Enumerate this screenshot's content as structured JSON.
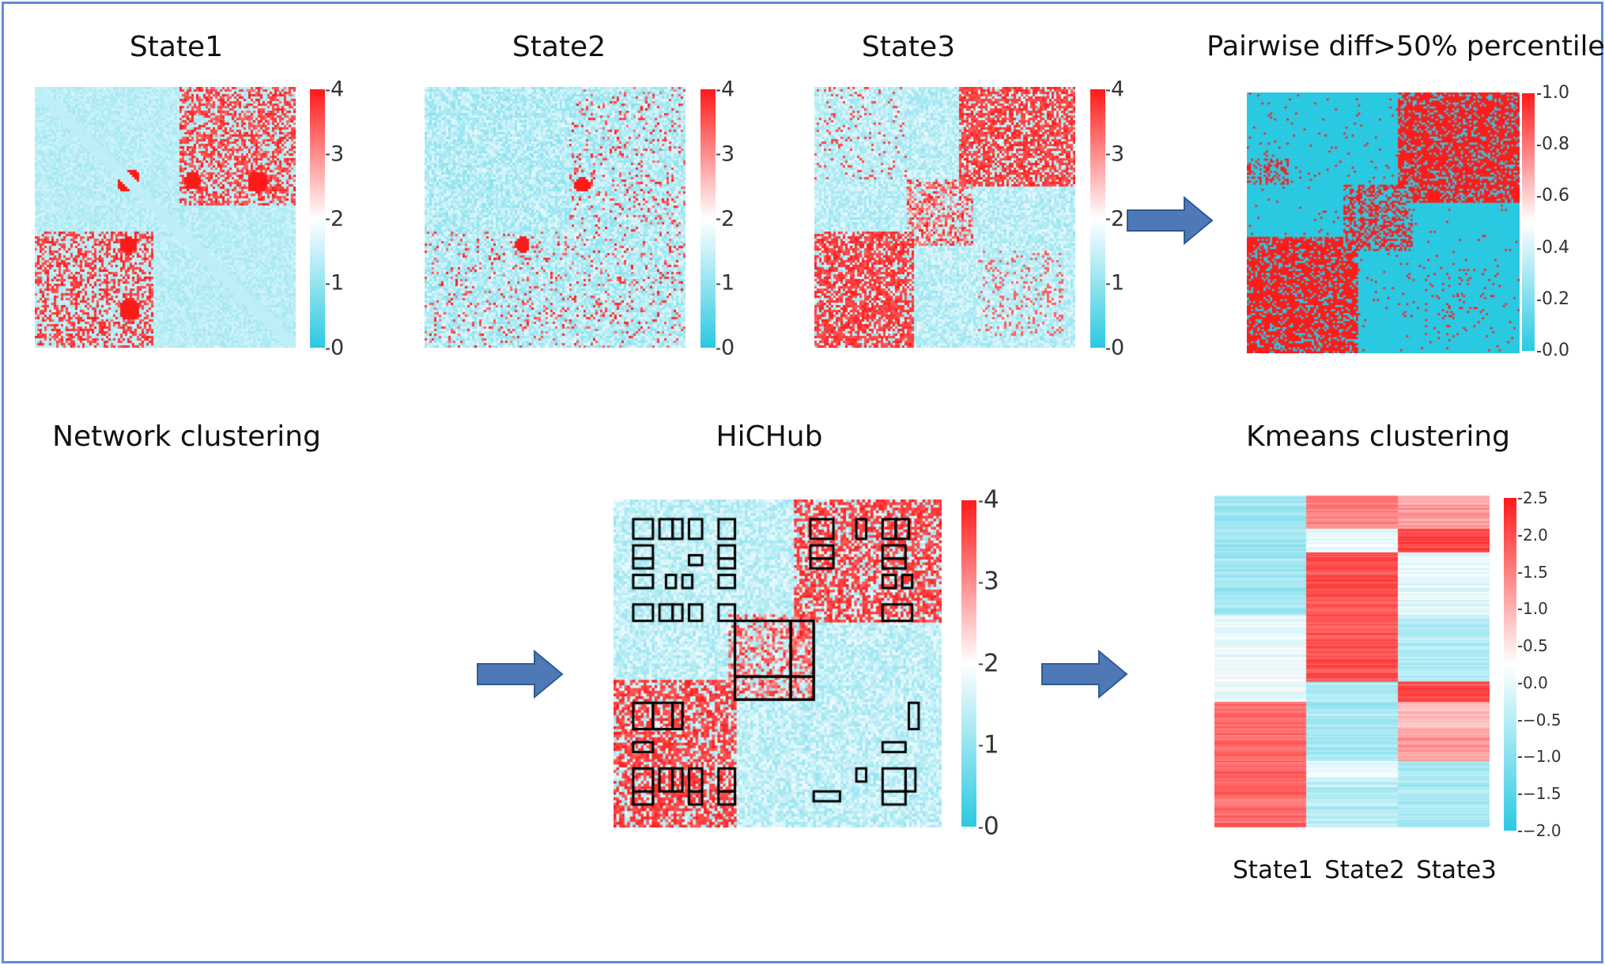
{
  "titles": {
    "state1": "State1",
    "state2": "State2",
    "state3": "State3",
    "pairwise": "Pairwise diff>50% percentile",
    "network": "Network clustering",
    "hichub": "HiCHub",
    "kmeans": "Kmeans clustering"
  },
  "colorbars": {
    "state": [
      "4",
      "3",
      "2",
      "1",
      "0"
    ],
    "pairwise": [
      "1.0",
      "0.8",
      "0.6",
      "0.4",
      "0.2",
      "0.0"
    ],
    "hichub": [
      "4",
      "3",
      "2",
      "1",
      "0"
    ],
    "kmeans": [
      "2.5",
      "2.0",
      "1.5",
      "1.0",
      "0.5",
      "0.0",
      "−0.5",
      "−1.0",
      "−1.5",
      "−2.0"
    ]
  },
  "kmeans_columns": [
    "State1",
    "State2",
    "State3"
  ],
  "colors": {
    "red": "#ff1a1a",
    "cyan": "#2ac9e2",
    "white": "#ffffff",
    "arrow": "#4e79b6",
    "arrow_edge": "#2f5a94",
    "frame": "#5b8fd6"
  },
  "icons": [
    "right-arrow-icon"
  ]
}
